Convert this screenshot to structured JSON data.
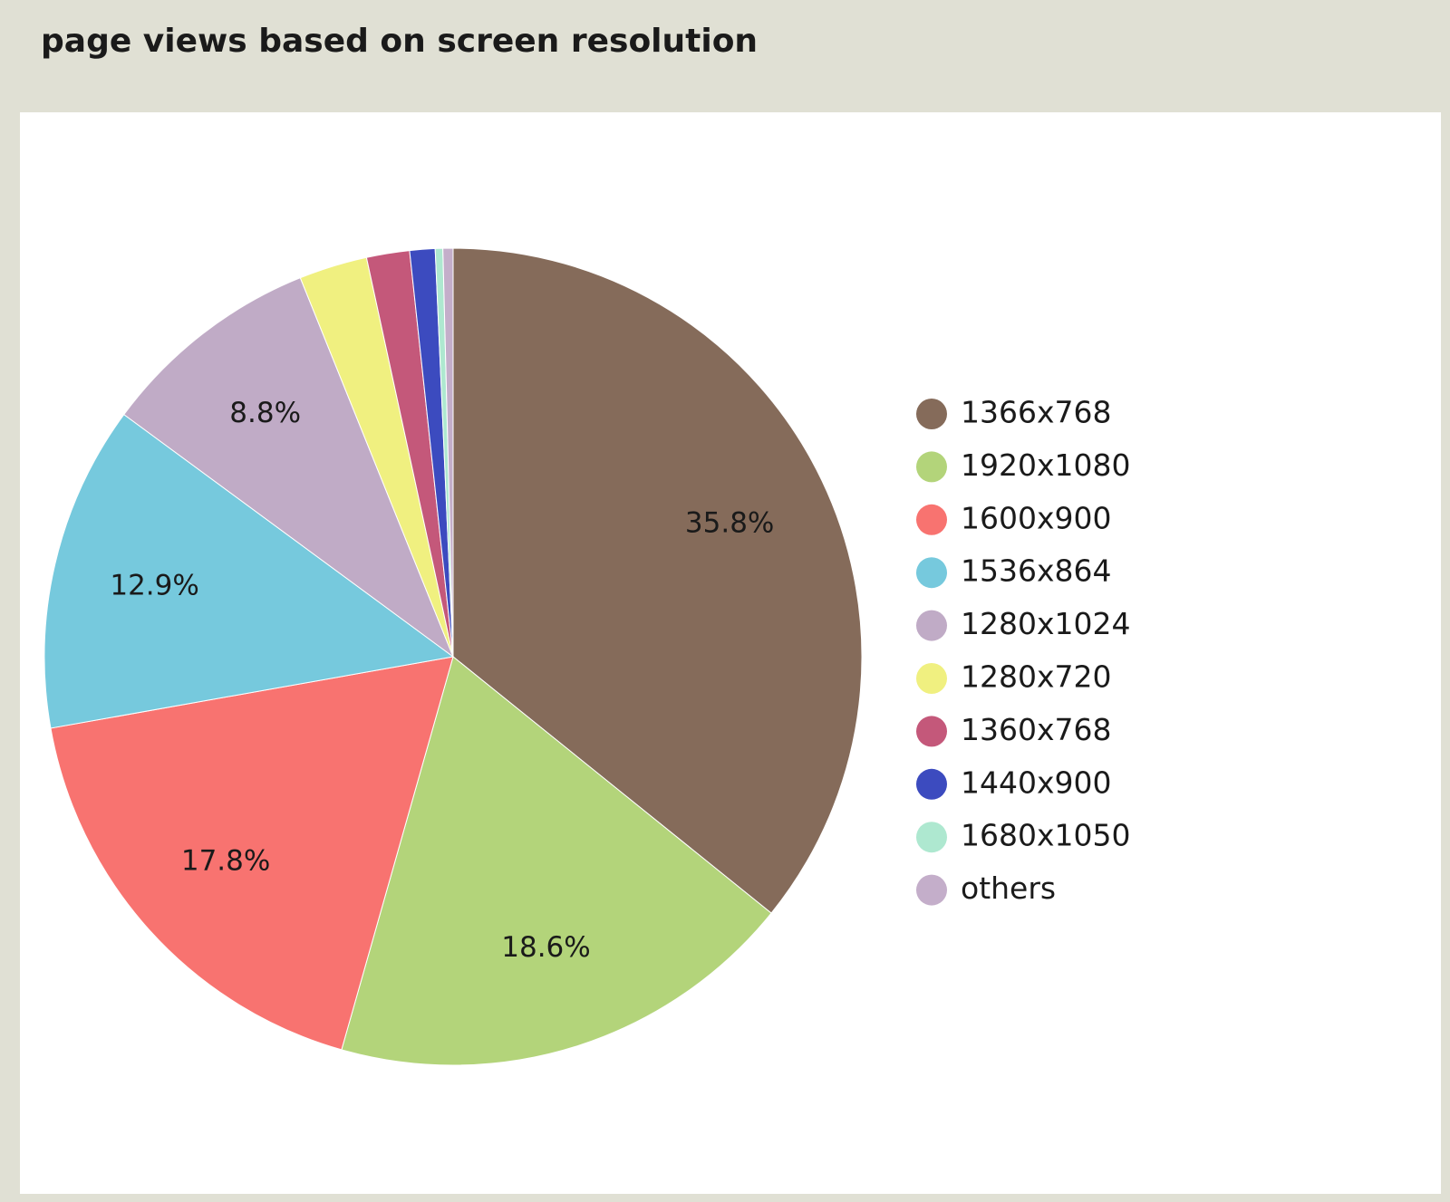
{
  "chart_data": {
    "type": "pie",
    "title": "page views based on screen resolution",
    "categories": [
      "1366x768",
      "1920x1080",
      "1600x900",
      "1536x864",
      "1280x1024",
      "1280x720",
      "1360x768",
      "1440x900",
      "1680x1050",
      "others"
    ],
    "values": [
      35.8,
      18.6,
      17.8,
      12.9,
      8.8,
      2.7,
      1.7,
      1.0,
      0.3,
      0.4
    ],
    "value_labels": [
      "35.8%",
      "18.6%",
      "17.8%",
      "12.9%",
      "8.8%",
      null,
      null,
      null,
      null,
      null
    ],
    "colors": [
      "#856b5a",
      "#b3d47a",
      "#f87370",
      "#76c9dd",
      "#c0abc6",
      "#f0f080",
      "#c4587a",
      "#3c4bbf",
      "#aee8d0",
      "#c4aeca"
    ],
    "legend": "right"
  }
}
